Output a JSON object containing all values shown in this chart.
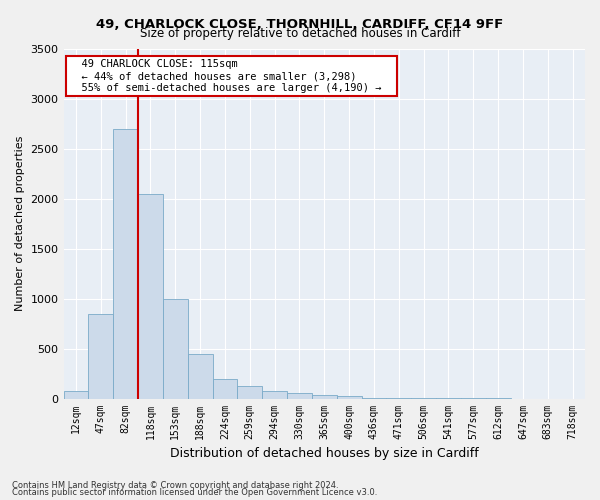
{
  "title1": "49, CHARLOCK CLOSE, THORNHILL, CARDIFF, CF14 9FF",
  "title2": "Size of property relative to detached houses in Cardiff",
  "xlabel": "Distribution of detached houses by size in Cardiff",
  "ylabel": "Number of detached properties",
  "bar_labels": [
    "12sqm",
    "47sqm",
    "82sqm",
    "118sqm",
    "153sqm",
    "188sqm",
    "224sqm",
    "259sqm",
    "294sqm",
    "330sqm",
    "365sqm",
    "400sqm",
    "436sqm",
    "471sqm",
    "506sqm",
    "541sqm",
    "577sqm",
    "612sqm",
    "647sqm",
    "683sqm",
    "718sqm"
  ],
  "bar_values": [
    75,
    850,
    2700,
    2050,
    1000,
    450,
    200,
    130,
    75,
    60,
    35,
    30,
    10,
    8,
    5,
    3,
    2,
    1,
    0,
    0,
    0
  ],
  "bar_color": "#ccdaea",
  "bar_edgecolor": "#7aaac8",
  "vline_color": "#cc0000",
  "annotation_title": "49 CHARLOCK CLOSE: 115sqm",
  "annotation_line1": "← 44% of detached houses are smaller (3,298)",
  "annotation_line2": "55% of semi-detached houses are larger (4,190) →",
  "annotation_box_facecolor": "#ffffff",
  "annotation_box_edgecolor": "#cc0000",
  "bg_color": "#e8eef5",
  "grid_color": "#ffffff",
  "fig_bg_color": "#f0f0f0",
  "ylim": [
    0,
    3500
  ],
  "yticks": [
    0,
    500,
    1000,
    1500,
    2000,
    2500,
    3000,
    3500
  ],
  "footnote1": "Contains HM Land Registry data © Crown copyright and database right 2024.",
  "footnote2": "Contains public sector information licensed under the Open Government Licence v3.0."
}
